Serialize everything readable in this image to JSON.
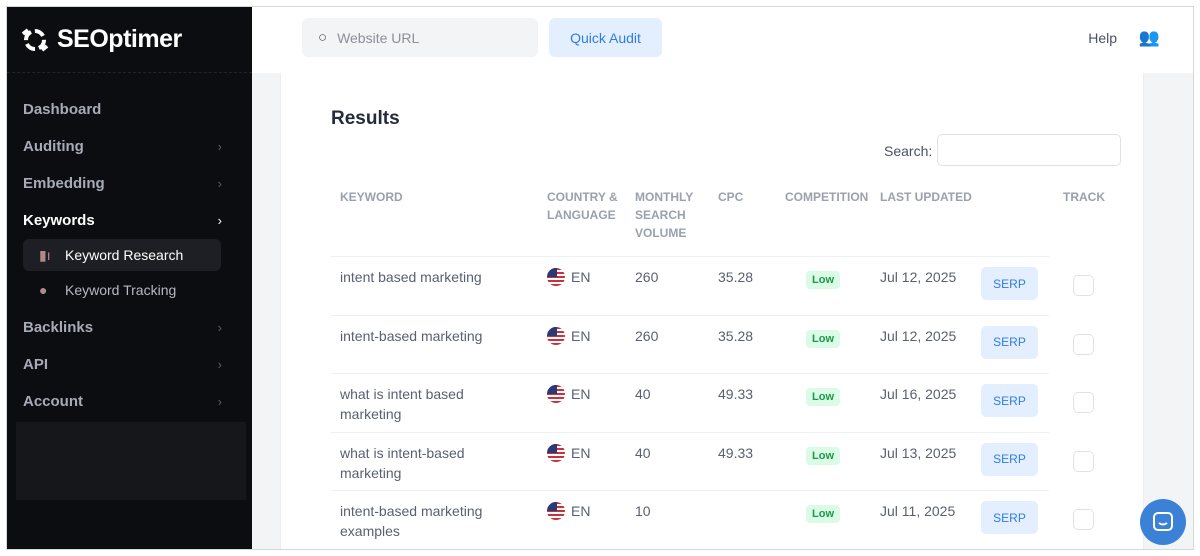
{
  "brand": "SEOptimer",
  "sidebar": {
    "items": [
      {
        "label": "Dashboard",
        "chevron": false
      },
      {
        "label": "Auditing",
        "chevron": true
      },
      {
        "label": "Embedding",
        "chevron": true
      },
      {
        "label": "Keywords",
        "chevron": true,
        "active": true
      },
      {
        "label": "Backlinks",
        "chevron": true
      },
      {
        "label": "API",
        "chevron": true
      },
      {
        "label": "Account",
        "chevron": true
      }
    ],
    "sub_items": [
      {
        "label": "Keyword Research",
        "icon": "bar-chart-icon",
        "active": true
      },
      {
        "label": "Keyword Tracking",
        "icon": "key-icon"
      }
    ]
  },
  "header": {
    "search_placeholder": "Website URL",
    "quick_audit": "Quick Audit",
    "help": "Help"
  },
  "main": {
    "title": "Results",
    "search_label": "Search:",
    "columns": [
      "KEYWORD",
      "COUNTRY & LANGUAGE",
      "MONTHLY SEARCH VOLUME",
      "CPC",
      "COMPETITION",
      "LAST UPDATED",
      "",
      "TRACK"
    ],
    "rows": [
      {
        "keyword": "intent based marketing",
        "lang": "EN",
        "volume": "260",
        "cpc": "35.28",
        "competition": "Low",
        "updated": "Jul 12, 2025",
        "serp": "SERP"
      },
      {
        "keyword": "intent-based marketing",
        "lang": "EN",
        "volume": "260",
        "cpc": "35.28",
        "competition": "Low",
        "updated": "Jul 12, 2025",
        "serp": "SERP"
      },
      {
        "keyword": "what is intent based marketing",
        "lang": "EN",
        "volume": "40",
        "cpc": "49.33",
        "competition": "Low",
        "updated": "Jul 16, 2025",
        "serp": "SERP"
      },
      {
        "keyword": "what is intent-based marketing",
        "lang": "EN",
        "volume": "40",
        "cpc": "49.33",
        "competition": "Low",
        "updated": "Jul 13, 2025",
        "serp": "SERP"
      },
      {
        "keyword": "intent-based marketing examples",
        "lang": "EN",
        "volume": "10",
        "cpc": "",
        "competition": "Low",
        "updated": "Jul 11, 2025",
        "serp": "SERP"
      }
    ]
  },
  "colors": {
    "accent": "#2f7de1",
    "sidebar": "#0c0d10",
    "low_badge": "#1a9a4a"
  }
}
